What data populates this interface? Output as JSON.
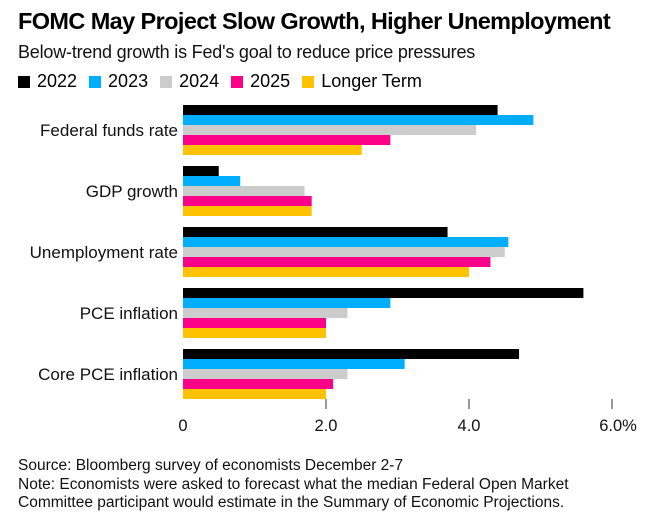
{
  "chart_data": {
    "type": "bar",
    "orientation": "horizontal",
    "title": "FOMC May Project Slow Growth, Higher Unemployment",
    "subtitle": "Below-trend growth is Fed's goal to reduce price pressures",
    "categories": [
      "Federal funds rate",
      "GDP growth",
      "Unemployment rate",
      "PCE inflation",
      "Core PCE inflation"
    ],
    "series": [
      {
        "name": "2022",
        "color": "#000000",
        "values": [
          4.4,
          0.5,
          3.7,
          5.6,
          4.7
        ]
      },
      {
        "name": "2023",
        "color": "#00aeff",
        "values": [
          4.9,
          0.8,
          4.55,
          2.9,
          3.1
        ]
      },
      {
        "name": "2024",
        "color": "#cccccc",
        "values": [
          4.1,
          1.7,
          4.5,
          2.3,
          2.3
        ]
      },
      {
        "name": "2025",
        "color": "#ff0088",
        "values": [
          2.9,
          1.8,
          4.3,
          2.0,
          2.1
        ]
      },
      {
        "name": "Longer Term",
        "color": "#ffc200",
        "values": [
          2.5,
          1.8,
          4.0,
          2.0,
          2.0
        ]
      }
    ],
    "xlim": [
      0,
      6.0
    ],
    "xticks": [
      0,
      2.0,
      4.0,
      6.0
    ],
    "xtick_labels": [
      "0",
      "2.0",
      "4.0",
      "6.0%"
    ],
    "xlabel": "",
    "ylabel": "",
    "legend_position": "top-left",
    "grid": false
  },
  "footer": {
    "source": "Source: Bloomberg survey of economists December 2-7",
    "note_line1": "Note: Economists were asked to forecast what the median Federal Open Market",
    "note_line2": "Committee participant would estimate in the Summary of Economic Projections."
  }
}
